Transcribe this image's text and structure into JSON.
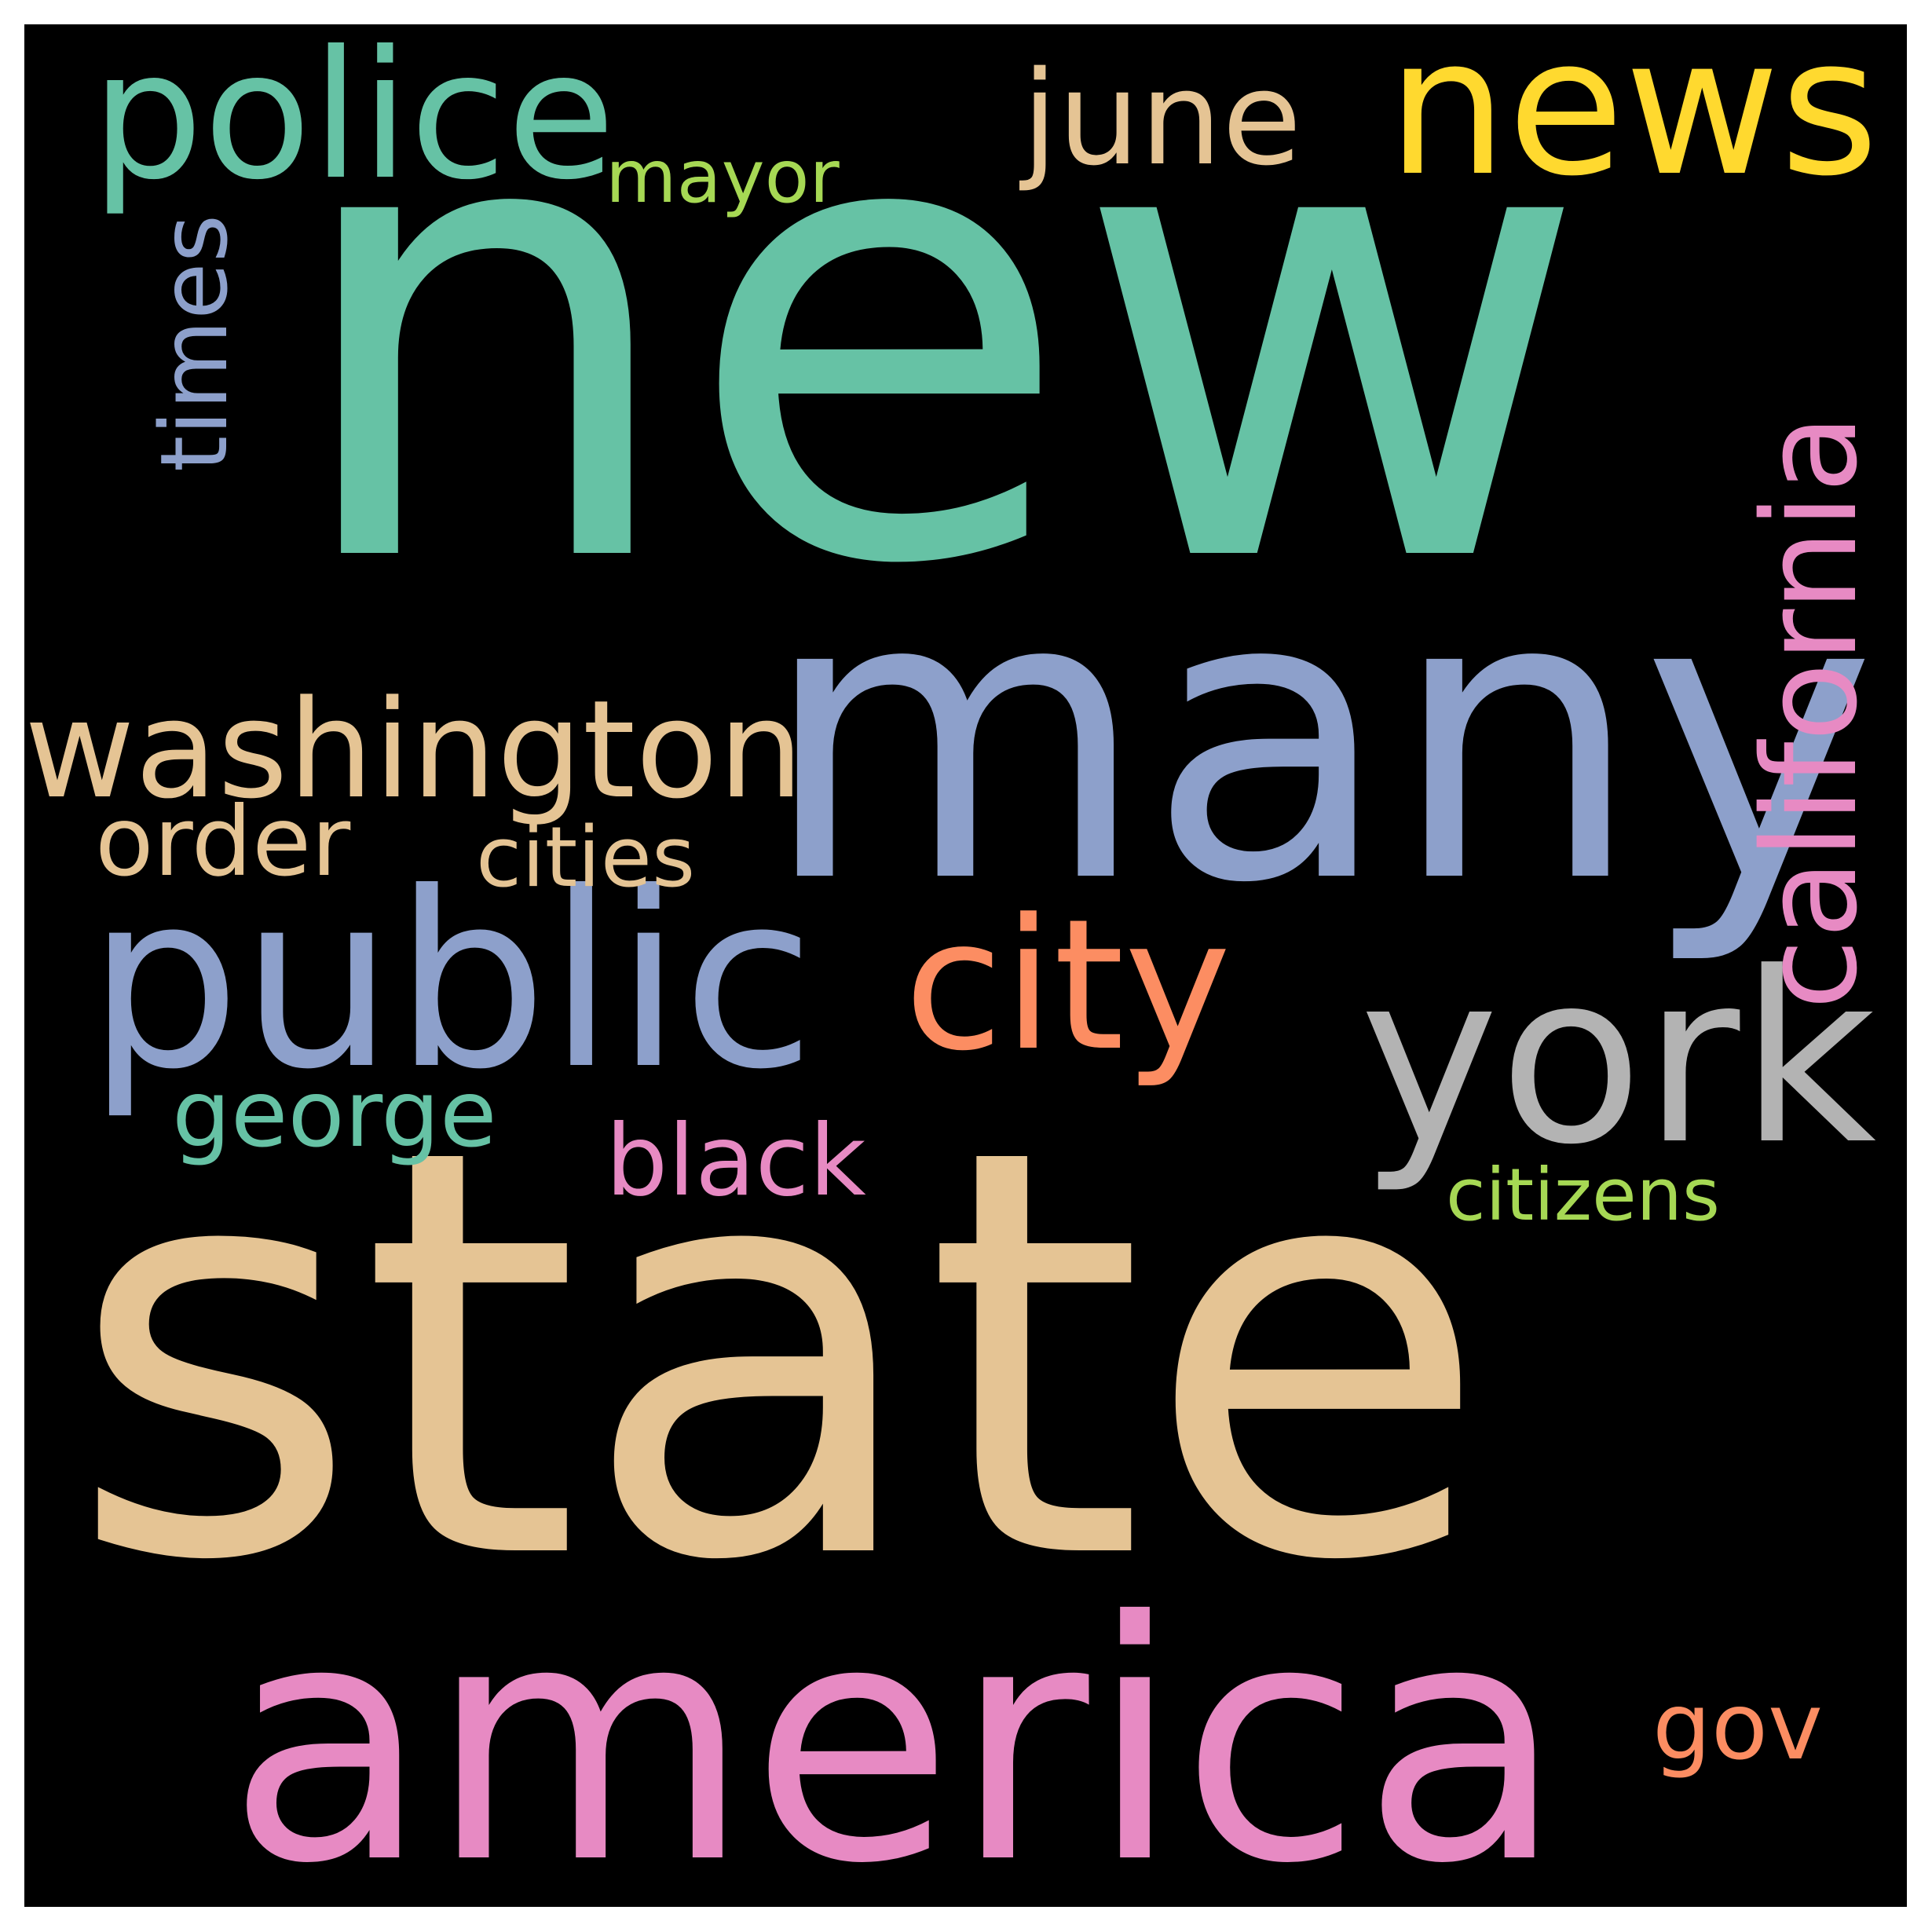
{
  "background_color": "#000000",
  "frame_color": "#ffffff",
  "words": [
    {
      "id": "new",
      "text": "new",
      "color": "#66c2a5"
    },
    {
      "id": "state",
      "text": "state",
      "color": "#e5c494"
    },
    {
      "id": "many",
      "text": "many",
      "color": "#8da0cb"
    },
    {
      "id": "america",
      "text": "america",
      "color": "#e78ac3"
    },
    {
      "id": "public",
      "text": "public",
      "color": "#8da0cb"
    },
    {
      "id": "york",
      "text": "york",
      "color": "#b3b3b3"
    },
    {
      "id": "city",
      "text": "city",
      "color": "#fc8d62"
    },
    {
      "id": "police",
      "text": "police",
      "color": "#66c2a5"
    },
    {
      "id": "news",
      "text": "news",
      "color": "#ffd92f"
    },
    {
      "id": "washington",
      "text": "washington",
      "color": "#e5c494"
    },
    {
      "id": "california",
      "text": "california",
      "color": "#e78ac3"
    },
    {
      "id": "june",
      "text": "june",
      "color": "#e5c494"
    },
    {
      "id": "times",
      "text": "times",
      "color": "#8da0cb"
    },
    {
      "id": "black",
      "text": "black",
      "color": "#e78ac3"
    },
    {
      "id": "order",
      "text": "order",
      "color": "#e5c494"
    },
    {
      "id": "george",
      "text": "george",
      "color": "#66c2a5"
    },
    {
      "id": "cities",
      "text": "cities",
      "color": "#e5c494"
    },
    {
      "id": "citizens",
      "text": "citizens",
      "color": "#a6d854"
    },
    {
      "id": "mayor",
      "text": "mayor",
      "color": "#a6d854"
    },
    {
      "id": "gov",
      "text": "gov",
      "color": "#fc8d62"
    }
  ]
}
